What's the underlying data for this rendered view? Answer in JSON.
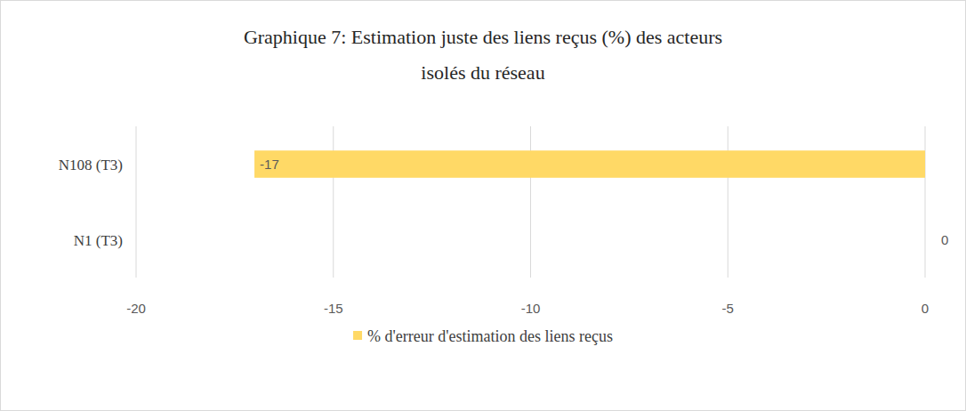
{
  "chart_data": {
    "type": "bar",
    "orientation": "horizontal",
    "title": "Graphique 7: Estimation juste des liens reçus (%) des acteurs isolés du réseau",
    "categories": [
      "N1 (T3)",
      "N108 (T3)"
    ],
    "series": [
      {
        "name": "% d'erreur d'estimation des liens reçus",
        "color": "#ffd966",
        "values": [
          0,
          -17
        ]
      }
    ],
    "xlim": [
      -20,
      0
    ],
    "xticks": [
      -20,
      -15,
      -10,
      -5,
      0
    ],
    "grid": true,
    "data_labels": true,
    "legend": "bottom"
  }
}
